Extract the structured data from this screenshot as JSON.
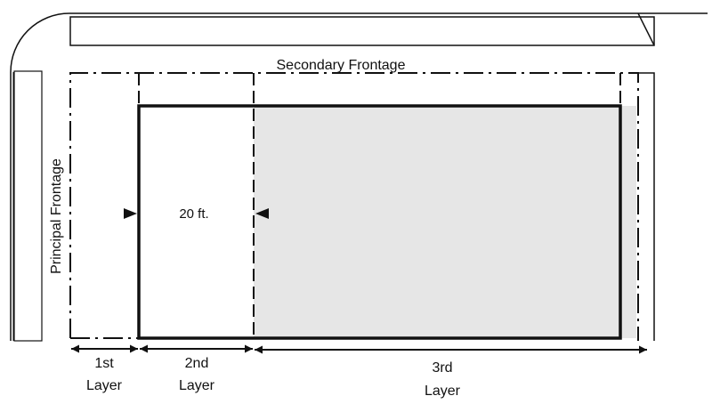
{
  "labels": {
    "secondary_frontage": "Secondary Frontage",
    "principal_frontage": "Principal Frontage",
    "setback": "20 ft.",
    "layer1_num": "1st",
    "layer1_word": "Layer",
    "layer2_num": "2nd",
    "layer2_word": "Layer",
    "layer3_num": "3rd",
    "layer3_word": "Layer"
  },
  "colors": {
    "line": "#111111",
    "shade": "#e6e6e6"
  }
}
